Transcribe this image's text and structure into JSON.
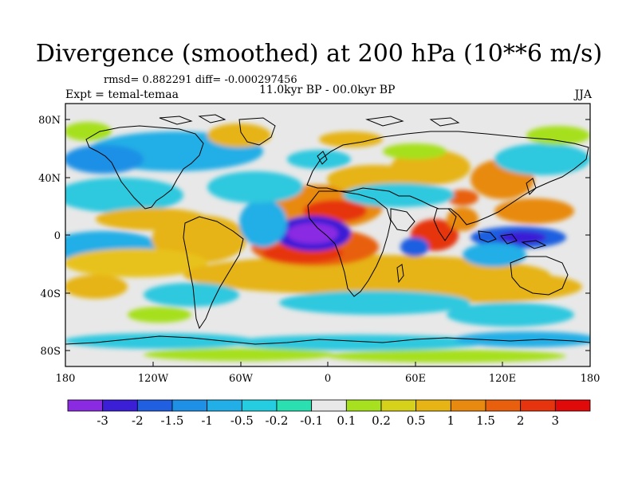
{
  "title": "Divergence (smoothed) at 200 hPa (10**6 m/s)",
  "stats": "rmsd= 0.882291 diff= -0.000297456",
  "experiment": "Expt = temal-temaa",
  "period": "11.0kyr BP - 00.0kyr BP",
  "season": "JJA",
  "lat_ticks": [
    "80N",
    "40N",
    "0",
    "40S",
    "80S"
  ],
  "lon_ticks": [
    "180",
    "120W",
    "60W",
    "0",
    "60E",
    "120E",
    "180"
  ],
  "colorbar": {
    "labels": [
      "-3",
      "-2",
      "-1.5",
      "-1",
      "-0.5",
      "-0.2",
      "-0.1",
      "0.1",
      "0.2",
      "0.5",
      "1",
      "1.5",
      "2",
      "3"
    ],
    "colors": [
      "#8a2be2",
      "#3a1fd6",
      "#1f5fe0",
      "#1e90e6",
      "#22aee6",
      "#25cde0",
      "#2be0b0",
      "#e8e8e8",
      "#a6e01e",
      "#d6d21c",
      "#e6b414",
      "#e88a10",
      "#e8600e",
      "#e6340e",
      "#e00a0a"
    ]
  }
}
